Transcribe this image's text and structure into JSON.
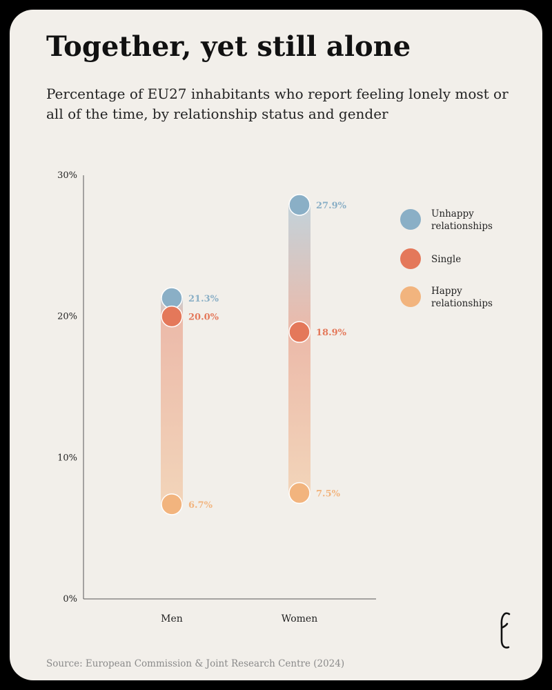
{
  "title": "Together, yet still alone",
  "subtitle": "Percentage of EU27 inhabitants who report feeling lonely most or all of the time, by relationship status and gender",
  "source": "Source: European Commission & Joint Research Centre (2024)",
  "logo_icon": "economist-e-logo-icon",
  "chart_data": {
    "type": "dot-range",
    "categories": [
      "Men",
      "Women"
    ],
    "series": [
      {
        "name": "Unhappy relationships",
        "legend_lines": [
          "Unhappy",
          "relationships"
        ],
        "color": "#8aafc6",
        "values": [
          21.3,
          27.9
        ],
        "labels": [
          "21.3%",
          "27.9%"
        ]
      },
      {
        "name": "Single",
        "legend_lines": [
          "Single"
        ],
        "color": "#e4785a",
        "values": [
          20.0,
          18.9
        ],
        "labels": [
          "20.0%",
          "18.9%"
        ]
      },
      {
        "name": "Happy relationships",
        "legend_lines": [
          "Happy",
          "relationships"
        ],
        "color": "#f2b47e",
        "values": [
          6.7,
          7.5
        ],
        "labels": [
          "6.7%",
          "7.5%"
        ]
      }
    ],
    "ylim": [
      0,
      30
    ],
    "yticks": [
      0,
      10,
      20,
      30
    ],
    "ytick_labels": [
      "0%",
      "10%",
      "20%",
      "30%"
    ],
    "legend_position": "right",
    "grid": false
  }
}
